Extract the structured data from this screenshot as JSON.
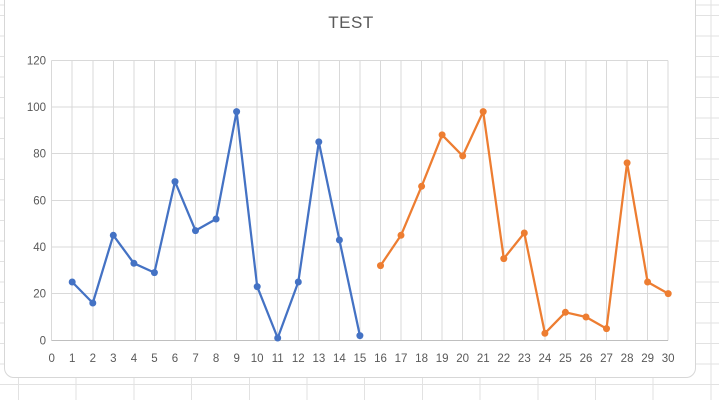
{
  "chart_data": {
    "type": "line",
    "title": "TEST",
    "xlim": [
      0,
      30
    ],
    "ylim": [
      0,
      120
    ],
    "x_ticks": [
      0,
      1,
      2,
      3,
      4,
      5,
      6,
      7,
      8,
      9,
      10,
      11,
      12,
      13,
      14,
      15,
      16,
      17,
      18,
      19,
      20,
      21,
      22,
      23,
      24,
      25,
      26,
      27,
      28,
      29,
      30
    ],
    "y_ticks": [
      0,
      20,
      40,
      60,
      80,
      100,
      120
    ],
    "grid": true,
    "legend": "none",
    "series": [
      {
        "color": "#4472C4",
        "points": [
          [
            1,
            25
          ],
          [
            2,
            16
          ],
          [
            3,
            45
          ],
          [
            4,
            33
          ],
          [
            5,
            29
          ],
          [
            6,
            68
          ],
          [
            7,
            47
          ],
          [
            8,
            52
          ],
          [
            9,
            98
          ],
          [
            10,
            23
          ],
          [
            11,
            1
          ],
          [
            12,
            25
          ],
          [
            13,
            85
          ],
          [
            14,
            43
          ],
          [
            15,
            2
          ]
        ]
      },
      {
        "color": "#ED7D31",
        "points": [
          [
            16,
            32
          ],
          [
            17,
            45
          ],
          [
            18,
            66
          ],
          [
            19,
            88
          ],
          [
            20,
            79
          ],
          [
            21,
            98
          ],
          [
            22,
            35
          ],
          [
            23,
            46
          ],
          [
            24,
            3
          ],
          [
            25,
            12
          ],
          [
            26,
            10
          ],
          [
            27,
            5
          ],
          [
            28,
            76
          ],
          [
            29,
            25
          ],
          [
            30,
            20
          ]
        ]
      }
    ],
    "colors": {
      "grid": "#d9d9d9",
      "axis_line": "#bfbfbf",
      "tick_label": "#595959",
      "title": "#595959"
    }
  }
}
